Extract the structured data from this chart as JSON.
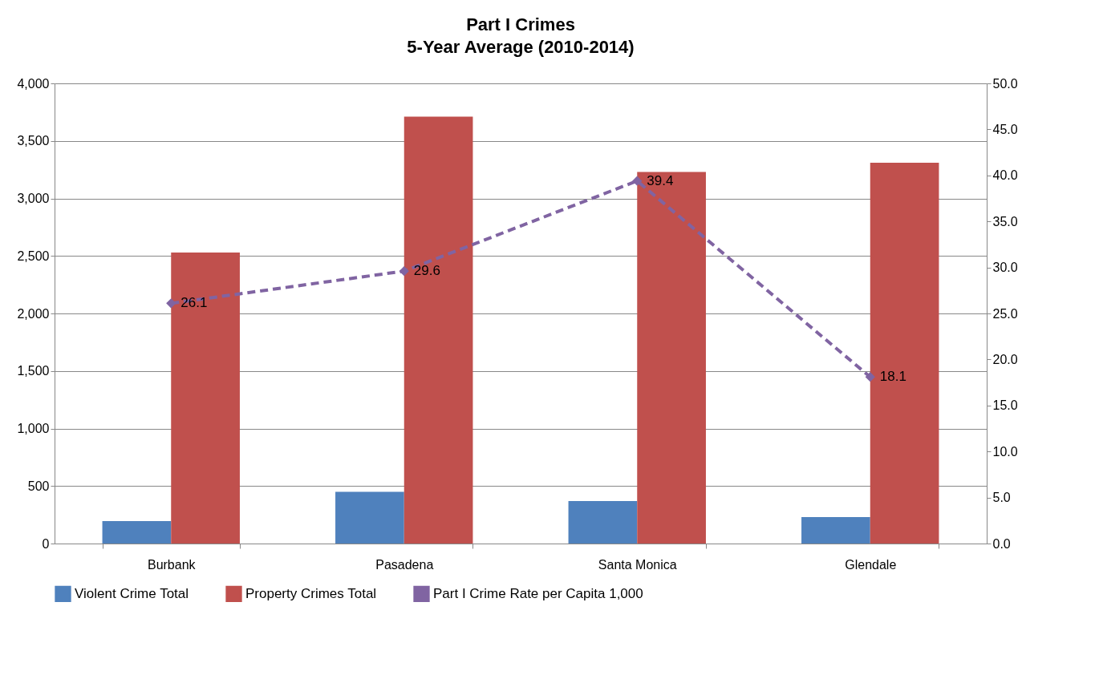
{
  "chart_data": {
    "type": "bar",
    "title": "Part I Crimes",
    "subtitle": "5-Year Average (2010-2014)",
    "categories": [
      "Burbank",
      "Pasadena",
      "Santa Monica",
      "Glendale"
    ],
    "series": [
      {
        "name": "Violent Crime Total",
        "type": "bar",
        "color": "#4f81bd",
        "values": [
          195,
          450,
          370,
          230
        ]
      },
      {
        "name": "Property Crimes Total",
        "type": "bar",
        "color": "#c0504d",
        "values": [
          2530,
          3710,
          3230,
          3310
        ]
      },
      {
        "name": "Part I Crime Rate per Capita 1,000",
        "type": "line",
        "axis": "y2",
        "color": "#8064a2",
        "values": [
          26.1,
          29.6,
          39.4,
          18.1
        ],
        "value_labels": [
          "26.1",
          "29.6",
          "39.4",
          "18.1"
        ],
        "marker": "diamond",
        "line_style": "dashed"
      }
    ],
    "ylim": [
      0,
      4000
    ],
    "yticks": [
      {
        "value": 0,
        "label": "0"
      },
      {
        "value": 500,
        "label": "500"
      },
      {
        "value": 1000,
        "label": "1,000"
      },
      {
        "value": 1500,
        "label": "1,500"
      },
      {
        "value": 2000,
        "label": "2,000"
      },
      {
        "value": 2500,
        "label": "2,500"
      },
      {
        "value": 3000,
        "label": "3,000"
      },
      {
        "value": 3500,
        "label": "3,500"
      },
      {
        "value": 4000,
        "label": "4,000"
      }
    ],
    "y2lim": [
      0,
      50
    ],
    "y2ticks": [
      {
        "value": 0,
        "label": "0.0"
      },
      {
        "value": 5,
        "label": "5.0"
      },
      {
        "value": 10,
        "label": "10.0"
      },
      {
        "value": 15,
        "label": "15.0"
      },
      {
        "value": 20,
        "label": "20.0"
      },
      {
        "value": 25,
        "label": "25.0"
      },
      {
        "value": 30,
        "label": "30.0"
      },
      {
        "value": 35,
        "label": "35.0"
      },
      {
        "value": 40,
        "label": "40.0"
      },
      {
        "value": 45,
        "label": "45.0"
      },
      {
        "value": 50,
        "label": "50.0"
      }
    ],
    "grid": "y",
    "legend": "bottom"
  }
}
